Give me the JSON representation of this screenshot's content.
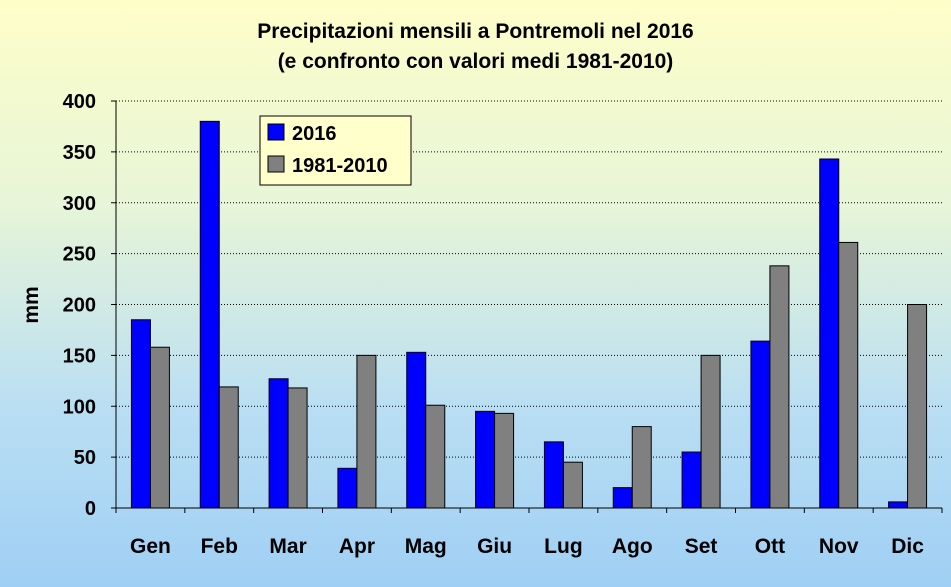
{
  "chart_data": {
    "type": "bar",
    "title": "Precipitazioni mensili a Pontremoli nel 2016",
    "subtitle": "(e confronto con valori medi 1981-2010)",
    "xlabel": "",
    "ylabel": "mm",
    "ylim": [
      0,
      400
    ],
    "yticks": [
      0,
      50,
      100,
      150,
      200,
      250,
      300,
      350,
      400
    ],
    "grid": "horizontal dotted",
    "legend_position": "top-left",
    "categories": [
      "Gen",
      "Feb",
      "Mar",
      "Apr",
      "Mag",
      "Giu",
      "Lug",
      "Ago",
      "Set",
      "Ott",
      "Nov",
      "Dic"
    ],
    "series": [
      {
        "name": "2016",
        "color": "#0000ff",
        "values": [
          185,
          380,
          127,
          39,
          153,
          95,
          65,
          20,
          55,
          164,
          343,
          6
        ]
      },
      {
        "name": "1981-2010",
        "color": "#808080",
        "values": [
          158,
          119,
          118,
          150,
          101,
          93,
          45,
          80,
          150,
          238,
          261,
          200
        ]
      }
    ]
  }
}
